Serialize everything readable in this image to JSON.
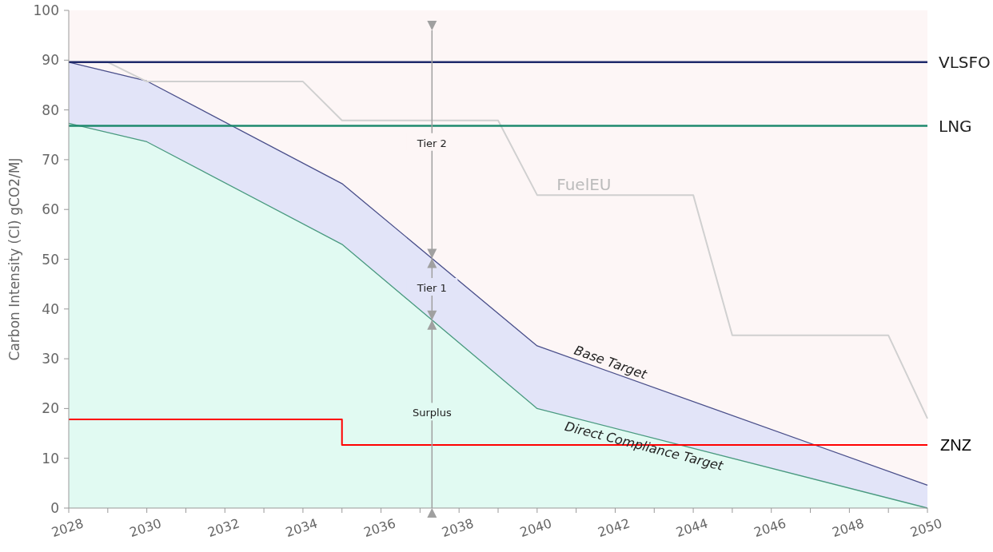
{
  "chart_data": {
    "type": "line",
    "ylabel": "Carbon Intensity (CI) gCO2/MJ",
    "xlim": [
      2028,
      2050
    ],
    "xticks": [
      2028,
      {
        "value": 2029,
        "label": null
      },
      2030,
      {
        "value": 2031,
        "label": null
      },
      2032,
      {
        "value": 2033,
        "label": null
      },
      2034,
      {
        "value": 2035,
        "label": null
      },
      2036,
      {
        "value": 2037,
        "label": null
      },
      2038,
      {
        "value": 2039,
        "label": null
      },
      2040,
      {
        "value": 2041,
        "label": null
      },
      2042,
      {
        "value": 2043,
        "label": null
      },
      2044,
      {
        "value": 2045,
        "label": null
      },
      2046,
      {
        "value": 2047,
        "label": null
      },
      2048,
      {
        "value": 2049,
        "label": null
      },
      2050
    ],
    "ylim": [
      0,
      100
    ],
    "yticks": [
      0,
      10,
      20,
      30,
      40,
      50,
      60,
      70,
      80,
      90,
      100
    ],
    "grid": false,
    "bands": [
      {
        "axis": "y",
        "from": 0,
        "to": 100,
        "color": "#fdf6f6"
      }
    ],
    "series": [
      {
        "name": "Base Target",
        "type": "area",
        "color": "#4a4f8a",
        "x": [
          2028,
          2030,
          2035,
          2040,
          2050
        ],
        "values": [
          89.6,
          85.8,
          65.2,
          32.6,
          4.6
        ]
      },
      {
        "name": "Direct Compliance Target",
        "type": "area",
        "color": "#4a9a80",
        "x": [
          2028,
          2030,
          2035,
          2040,
          2050
        ],
        "values": [
          77.3,
          73.6,
          53,
          20,
          0
        ]
      },
      {
        "name": "FuelEU",
        "type": "line",
        "color": "#d0d0d0",
        "x": [
          2028,
          2029,
          2030,
          2034,
          2035,
          2039,
          2040,
          2044,
          2045,
          2049,
          2050
        ],
        "values": [
          89.6,
          89.6,
          85.7,
          85.7,
          77.9,
          77.9,
          62.9,
          62.9,
          34.7,
          34.7,
          18
        ]
      },
      {
        "name": "ZNZ",
        "type": "step",
        "color": "#ff0000",
        "x": [
          2028,
          2035,
          2050
        ],
        "values": [
          17.8,
          12.7,
          12.7
        ]
      }
    ],
    "ref_lines": [
      {
        "axis": "y",
        "value": 89.6,
        "label": "VLSFO",
        "color": "#1f2a6b"
      },
      {
        "axis": "y",
        "value": 76.8,
        "label": "LNG",
        "color": "#1e8a6e"
      }
    ],
    "annotations": [
      "Tier 2",
      "Tier 1",
      "Surplus"
    ]
  }
}
